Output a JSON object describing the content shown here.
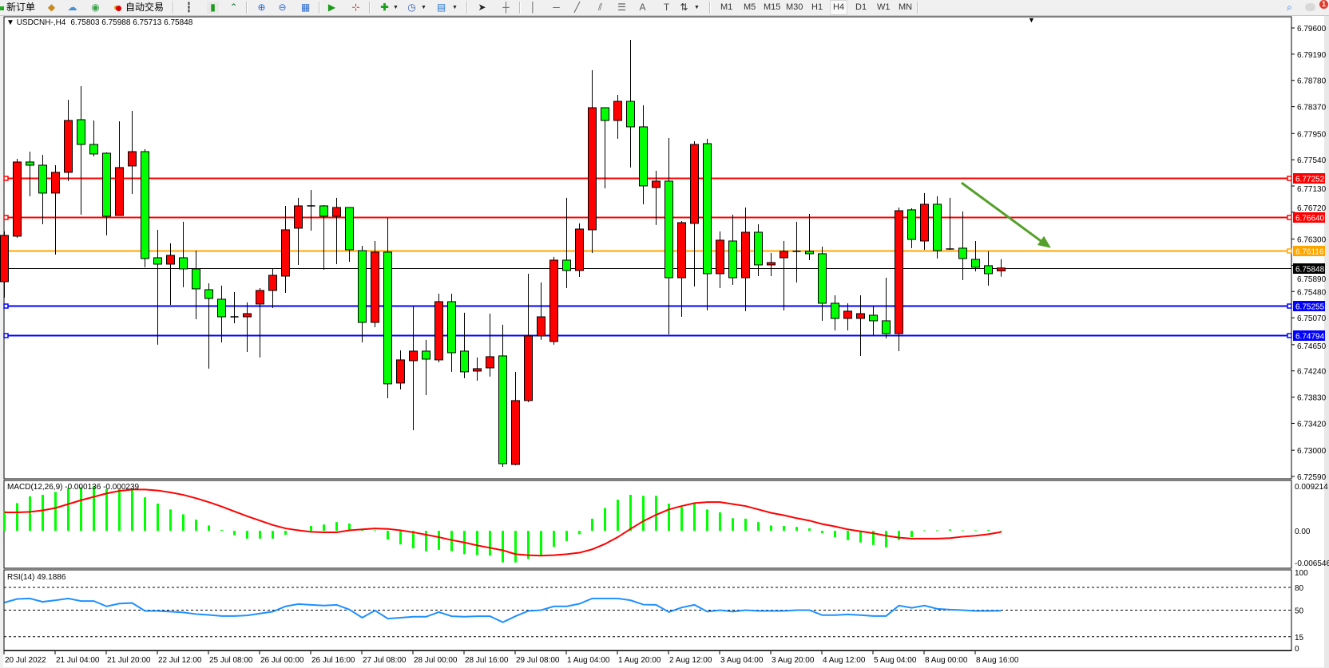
{
  "toolbar": {
    "new_order_label": "新订单",
    "auto_trading_label": "自动交易",
    "timeframes": [
      "M1",
      "M5",
      "M15",
      "M30",
      "H1",
      "H4",
      "D1",
      "W1",
      "MN"
    ],
    "selected_timeframe": "H4",
    "notification_count": "1",
    "icons": [
      "new-order",
      "metaeditor",
      "signals",
      "market-watch",
      "autotrading",
      "bar-chart",
      "candlestick-chart",
      "line-chart",
      "zoom-in",
      "zoom-out",
      "tile-windows",
      "auto-scroll",
      "chart-shift",
      "indicators",
      "periods",
      "templates",
      "cursor",
      "crosshair",
      "vertical-line",
      "horizontal-line",
      "trendline",
      "equidistant-channel",
      "fibonacci",
      "text",
      "text-label",
      "arrows",
      "search",
      "notifications"
    ]
  },
  "chart": {
    "header_symbol": "USDCNH-,H4",
    "header_ohlc": "6.75803 6.75988 6.75713 6.75848",
    "shift_marker": "▼"
  },
  "chart_data": [
    {
      "type": "candlestick",
      "symbol": "USDCNH-",
      "timeframe": "H4",
      "ylim": [
        6.7259,
        6.796
      ],
      "bull_color": "#ff0000",
      "bear_color": "#00ff00",
      "grid": false,
      "y_ticks": [
        "6.79600",
        "6.79190",
        "6.78780",
        "6.78370",
        "6.77950",
        "6.77540",
        "6.77130",
        "6.76720",
        "6.76300",
        "6.75890",
        "6.75480",
        "6.75070",
        "6.74650",
        "6.74240",
        "6.73830",
        "6.73420",
        "6.73000",
        "6.72590"
      ],
      "x_ticks": [
        "20 Jul 2022",
        "21 Jul 04:00",
        "21 Jul 20:00",
        "22 Jul 12:00",
        "25 Jul 08:00",
        "26 Jul 00:00",
        "26 Jul 16:00",
        "27 Jul 08:00",
        "28 Jul 00:00",
        "28 Jul 16:00",
        "29 Jul 08:00",
        "1 Aug 04:00",
        "1 Aug 20:00",
        "2 Aug 12:00",
        "3 Aug 04:00",
        "3 Aug 20:00",
        "4 Aug 12:00",
        "5 Aug 04:00",
        "8 Aug 00:00",
        "8 Aug 16:00"
      ],
      "ohlc_columns": [
        "open",
        "high",
        "low",
        "close"
      ],
      "ohlc": [
        [
          6.75634,
          6.7642,
          6.75385,
          6.76358
        ],
        [
          6.76345,
          6.77555,
          6.7632,
          6.77505
        ],
        [
          6.77505,
          6.77667,
          6.76969,
          6.77455
        ],
        [
          6.77455,
          6.77617,
          6.76532,
          6.77019
        ],
        [
          6.77019,
          6.77455,
          6.76058,
          6.77343
        ],
        [
          6.77343,
          6.78478,
          6.77206,
          6.78154
        ],
        [
          6.78166,
          6.7869,
          6.76682,
          6.77779
        ],
        [
          6.77779,
          6.78154,
          6.77592,
          6.7763
        ],
        [
          6.77642,
          6.77655,
          6.76358,
          6.76657
        ],
        [
          6.76669,
          6.78141,
          6.76669,
          6.77418
        ],
        [
          6.77443,
          6.78303,
          6.77006,
          6.77667
        ],
        [
          6.77667,
          6.77705,
          6.75859,
          6.75996
        ],
        [
          6.76008,
          6.76445,
          6.74649,
          6.75908
        ],
        [
          6.75908,
          6.76233,
          6.75272,
          6.76046
        ],
        [
          6.76008,
          6.7657,
          6.75547,
          6.75834
        ],
        [
          6.75834,
          6.7612,
          6.75048,
          6.75522
        ],
        [
          6.75509,
          6.75609,
          6.74275,
          6.75372
        ],
        [
          6.7536,
          6.75572,
          6.74686,
          6.75085
        ],
        [
          6.75085,
          6.75472,
          6.74985,
          6.75085
        ],
        [
          6.75085,
          6.7531,
          6.74536,
          6.75135
        ],
        [
          6.75285,
          6.75534,
          6.74449,
          6.75497
        ],
        [
          6.75497,
          6.75834,
          6.75222,
          6.75734
        ],
        [
          6.75721,
          6.76819,
          6.75459,
          6.76445
        ],
        [
          6.7647,
          6.76944,
          6.75896,
          6.76819
        ],
        [
          6.76819,
          6.77068,
          6.76432,
          6.76819
        ],
        [
          6.76819,
          6.76831,
          6.75821,
          6.76657
        ],
        [
          6.76657,
          6.76944,
          6.75908,
          6.76794
        ],
        [
          6.76794,
          6.76794,
          6.75946,
          6.76133
        ],
        [
          6.7612,
          6.76195,
          6.74686,
          6.74998
        ],
        [
          6.74998,
          6.7627,
          6.74923,
          6.76096
        ],
        [
          6.76096,
          6.76632,
          6.73813,
          6.74038
        ],
        [
          6.7405,
          6.74561,
          6.7395,
          6.74412
        ],
        [
          6.74399,
          6.75247,
          6.73314,
          6.74549
        ],
        [
          6.74549,
          6.74724,
          6.73863,
          6.74424
        ],
        [
          6.74412,
          6.75447,
          6.74374,
          6.75322
        ],
        [
          6.75322,
          6.75447,
          6.74225,
          6.74524
        ],
        [
          6.74549,
          6.75148,
          6.74125,
          6.74225
        ],
        [
          6.74237,
          6.74449,
          6.74087,
          6.74275
        ],
        [
          6.74287,
          6.75135,
          6.7415,
          6.74462
        ],
        [
          6.74474,
          6.74961,
          6.7274,
          6.7279
        ],
        [
          6.72778,
          6.74225,
          6.72765,
          6.73776
        ],
        [
          6.73776,
          6.75759,
          6.73751,
          6.74786
        ],
        [
          6.74786,
          6.75622,
          6.74724,
          6.75085
        ],
        [
          6.74699,
          6.76021,
          6.74649,
          6.75971
        ],
        [
          6.75971,
          6.76944,
          6.75534,
          6.75809
        ],
        [
          6.75809,
          6.76545,
          6.75709,
          6.76457
        ],
        [
          6.76445,
          6.78939,
          6.76083,
          6.78353
        ],
        [
          6.78353,
          6.78353,
          6.77093,
          6.78154
        ],
        [
          6.78154,
          6.78553,
          6.77867,
          6.78453
        ],
        [
          6.78453,
          6.79413,
          6.77418,
          6.78054
        ],
        [
          6.78054,
          6.78391,
          6.76844,
          6.77131
        ],
        [
          6.77106,
          6.77368,
          6.7652,
          6.77206
        ],
        [
          6.77206,
          6.77879,
          6.74811,
          6.75696
        ],
        [
          6.75696,
          6.76582,
          6.75085,
          6.76557
        ],
        [
          6.76545,
          6.77829,
          6.75559,
          6.77779
        ],
        [
          6.77792,
          6.77867,
          6.75185,
          6.75759
        ],
        [
          6.75759,
          6.7642,
          6.75534,
          6.76283
        ],
        [
          6.7627,
          6.76682,
          6.75584,
          6.75696
        ],
        [
          6.75696,
          6.76794,
          6.75173,
          6.76407
        ],
        [
          6.76407,
          6.76532,
          6.75721,
          6.75896
        ],
        [
          6.75896,
          6.76083,
          6.75721,
          6.75933
        ],
        [
          6.76008,
          6.7627,
          6.75185,
          6.76108
        ],
        [
          6.76096,
          6.7657,
          6.75622,
          6.76108
        ],
        [
          6.76108,
          6.76694,
          6.75971,
          6.76071
        ],
        [
          6.76071,
          6.76183,
          6.75023,
          6.75297
        ],
        [
          6.75297,
          6.75422,
          6.74873,
          6.7506
        ],
        [
          6.7506,
          6.75297,
          6.74873,
          6.75173
        ],
        [
          6.7506,
          6.75422,
          6.74474,
          6.75135
        ],
        [
          6.7511,
          6.7526,
          6.74798,
          6.75023
        ],
        [
          6.75023,
          6.75696,
          6.74748,
          6.74823
        ],
        [
          6.74823,
          6.76794,
          6.74549,
          6.76744
        ],
        [
          6.76757,
          6.76782,
          6.76158,
          6.76295
        ],
        [
          6.7627,
          6.77019,
          6.76133,
          6.76844
        ],
        [
          6.76844,
          6.76969,
          6.75996,
          6.7612
        ],
        [
          6.76133,
          6.76944,
          6.76133,
          6.76145
        ],
        [
          6.76158,
          6.76732,
          6.75659,
          6.75996
        ],
        [
          6.75983,
          6.7627,
          6.75796,
          6.75859
        ],
        [
          6.75884,
          6.76108,
          6.75572,
          6.75759
        ],
        [
          6.75803,
          6.75988,
          6.75713,
          6.75848
        ]
      ],
      "horizontal_lines": [
        {
          "price": 6.77252,
          "label": "6.77252",
          "color": "#ff0000"
        },
        {
          "price": 6.7664,
          "label": "6.76640",
          "color": "#ff0000"
        },
        {
          "price": 6.76116,
          "label": "6.76116",
          "color": "#ffa500"
        },
        {
          "price": 6.75255,
          "label": "6.75255",
          "color": "#0000ff"
        },
        {
          "price": 6.74794,
          "label": "6.74794",
          "color": "#0000ff"
        }
      ],
      "current_price": {
        "price": 6.75848,
        "label": "6.75848",
        "color": "#000000"
      },
      "annotations": [
        {
          "type": "arrow",
          "color": "#55a02a",
          "from": {
            "candle": 74.9,
            "price": 6.7718
          },
          "to": {
            "candle": 81.9,
            "price": 6.7616
          }
        }
      ]
    },
    {
      "type": "bar",
      "title": "MACD(12,26,9) -0.000136 -0.000239",
      "ylim": [
        -0.006546,
        0.009214
      ],
      "y_ticks": [
        "0.009214",
        "0.00",
        "-0.006546"
      ],
      "histogram_color": "#00ff00",
      "signal_color": "#ff0000",
      "histogram": [
        0.0041,
        0.0057,
        0.0071,
        0.0074,
        0.008,
        0.0088,
        0.009,
        0.0092,
        0.0086,
        0.0086,
        0.0084,
        0.0069,
        0.0056,
        0.0044,
        0.0034,
        0.0023,
        0.0011,
        0.0002,
        -0.0009,
        -0.0016,
        -0.0016,
        -0.0016,
        -0.0008,
        0.0003,
        0.001,
        0.0013,
        0.0018,
        0.0015,
        0.0002,
        0.0001,
        -0.0018,
        -0.0028,
        -0.0036,
        -0.0042,
        -0.0039,
        -0.0042,
        -0.0048,
        -0.005,
        -0.0051,
        -0.0065,
        -0.0065,
        -0.0058,
        -0.005,
        -0.0033,
        -0.0021,
        -0.0007,
        0.0025,
        0.0047,
        0.0064,
        0.0074,
        0.0072,
        0.0072,
        0.0056,
        0.0049,
        0.0056,
        0.0044,
        0.0038,
        0.0026,
        0.0025,
        0.0018,
        0.0011,
        0.001,
        0.0008,
        0.0005,
        -0.0005,
        -0.0013,
        -0.0019,
        -0.0024,
        -0.0029,
        -0.0034,
        -0.0019,
        -0.0013,
        0.0001,
        0.0001,
        0.0003,
        0.0001,
        0.0001,
        0.0002,
        -0.000136
      ],
      "signal": [
        0.0038,
        0.0038,
        0.0039,
        0.0042,
        0.0047,
        0.0055,
        0.0063,
        0.007,
        0.0077,
        0.0082,
        0.0085,
        0.0085,
        0.0083,
        0.0079,
        0.0074,
        0.0067,
        0.0059,
        0.005,
        0.004,
        0.003,
        0.0021,
        0.0012,
        0.0005,
        0.0001,
        -0.0002,
        -0.0003,
        -0.0003,
        0.0001,
        0.0003,
        0.0005,
        0.0004,
        0.0001,
        -0.0003,
        -0.0008,
        -0.0013,
        -0.0019,
        -0.0024,
        -0.003,
        -0.0035,
        -0.004,
        -0.0048,
        -0.005,
        -0.0051,
        -0.005,
        -0.0048,
        -0.0045,
        -0.0038,
        -0.0027,
        -0.0013,
        0.0004,
        0.002,
        0.0033,
        0.0044,
        0.0051,
        0.0057,
        0.0059,
        0.0059,
        0.0055,
        0.0051,
        0.0044,
        0.0037,
        0.0032,
        0.0026,
        0.0021,
        0.0014,
        0.0009,
        0.0003,
        -0.0001,
        -0.0005,
        -0.001,
        -0.0014,
        -0.0016,
        -0.0016,
        -0.0016,
        -0.0015,
        -0.0012,
        -0.001,
        -0.0007,
        -0.000239
      ]
    },
    {
      "type": "line",
      "title": "RSI(14) 49.1886",
      "ylim": [
        0,
        100
      ],
      "y_ticks": [
        "100",
        "80",
        "50",
        "15",
        "0"
      ],
      "levels": [
        80,
        50,
        15
      ],
      "line_color": "#1e90ff",
      "values": [
        60,
        64.7,
        65.4,
        61,
        63,
        65.4,
        62,
        62,
        55,
        58.7,
        59.4,
        49,
        49,
        48,
        47,
        44.8,
        43.7,
        42.3,
        42.3,
        43,
        45.5,
        48,
        55,
        58,
        57,
        56,
        57,
        50.7,
        40,
        49.6,
        38.8,
        40,
        41.3,
        41.3,
        47.5,
        42,
        41.3,
        42,
        42,
        34,
        42,
        49,
        50,
        55,
        55,
        58.4,
        65.4,
        65.4,
        65.4,
        63,
        57.3,
        57,
        47.5,
        53.5,
        57,
        48,
        50,
        48,
        50,
        49,
        49,
        49,
        50,
        50,
        43.4,
        43.4,
        44.4,
        43.4,
        42.3,
        42.3,
        56,
        53,
        56,
        51.7,
        50.7,
        50,
        49,
        49,
        49.1886
      ]
    }
  ]
}
